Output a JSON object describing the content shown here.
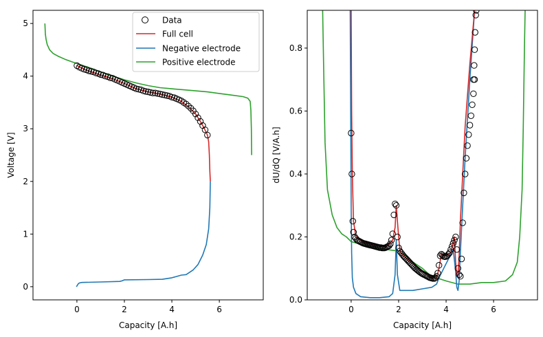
{
  "chart_data": [
    {
      "type": "line",
      "panel": "left",
      "title": "",
      "xlabel": "Capacity [A.h]",
      "ylabel": "Voltage [V]",
      "xlim": [
        -1.85,
        7.85
      ],
      "ylim": [
        -0.25,
        5.25
      ],
      "xticks": [
        0,
        2,
        4,
        6
      ],
      "yticks": [
        0,
        1,
        2,
        3,
        4,
        5
      ],
      "legend": {
        "placement": "top-right",
        "entries": [
          "Data",
          "Full cell",
          "Negative electrode",
          "Positive electrode"
        ]
      },
      "series": [
        {
          "name": "Positive electrode",
          "color": "#2ca02c",
          "kind": "line",
          "x": [
            -1.35,
            -1.33,
            -1.3,
            -1.25,
            -1.15,
            -1.0,
            -0.8,
            -0.5,
            -0.2,
            0.2,
            0.6,
            1.0,
            1.5,
            2.0,
            2.5,
            3.0,
            3.5,
            4.0,
            4.5,
            5.0,
            5.5,
            6.0,
            6.5,
            7.0,
            7.2,
            7.3,
            7.33,
            7.35,
            7.36
          ],
          "y": [
            5.0,
            4.8,
            4.7,
            4.6,
            4.5,
            4.43,
            4.38,
            4.32,
            4.27,
            4.21,
            4.15,
            4.08,
            4.0,
            3.93,
            3.87,
            3.82,
            3.78,
            3.76,
            3.74,
            3.72,
            3.7,
            3.67,
            3.64,
            3.61,
            3.58,
            3.52,
            3.35,
            3.0,
            2.5
          ]
        },
        {
          "name": "Full cell",
          "color": "#d62728",
          "kind": "line",
          "x": [
            0.0,
            0.3,
            0.6,
            1.0,
            1.5,
            2.0,
            2.5,
            3.0,
            3.5,
            4.0,
            4.4,
            4.7,
            5.0,
            5.2,
            5.35,
            5.5,
            5.55,
            5.58,
            5.6,
            5.62
          ],
          "y": [
            4.2,
            4.13,
            4.08,
            4.02,
            3.95,
            3.86,
            3.76,
            3.7,
            3.66,
            3.6,
            3.52,
            3.42,
            3.28,
            3.14,
            3.02,
            2.88,
            2.75,
            2.5,
            2.2,
            2.0
          ]
        },
        {
          "name": "Negative electrode",
          "color": "#1f77b4",
          "kind": "line",
          "x": [
            -0.02,
            0.05,
            0.1,
            0.2,
            1.0,
            1.8,
            1.9,
            2.0,
            3.0,
            3.6,
            4.0,
            4.4,
            4.6,
            4.9,
            5.1,
            5.3,
            5.45,
            5.55,
            5.6,
            5.62
          ],
          "y": [
            0.0,
            0.05,
            0.07,
            0.08,
            0.09,
            0.1,
            0.11,
            0.13,
            0.135,
            0.14,
            0.17,
            0.22,
            0.23,
            0.32,
            0.42,
            0.6,
            0.8,
            1.1,
            1.5,
            2.0
          ]
        },
        {
          "name": "Data",
          "kind": "markers",
          "x": [
            0.0,
            0.1,
            0.2,
            0.3,
            0.4,
            0.5,
            0.6,
            0.7,
            0.8,
            0.9,
            1.0,
            1.1,
            1.2,
            1.3,
            1.4,
            1.5,
            1.6,
            1.7,
            1.8,
            1.9,
            2.0,
            2.1,
            2.2,
            2.3,
            2.4,
            2.5,
            2.6,
            2.7,
            2.8,
            2.9,
            3.0,
            3.1,
            3.2,
            3.3,
            3.4,
            3.5,
            3.6,
            3.7,
            3.8,
            3.9,
            4.0,
            4.1,
            4.2,
            4.3,
            4.4,
            4.5,
            4.6,
            4.7,
            4.8,
            4.9,
            5.0,
            5.1,
            5.2,
            5.3,
            5.4,
            5.5
          ],
          "y": [
            4.2,
            4.17,
            4.15,
            4.13,
            4.12,
            4.1,
            4.09,
            4.08,
            4.06,
            4.05,
            4.03,
            4.02,
            4.0,
            3.99,
            3.97,
            3.96,
            3.94,
            3.92,
            3.9,
            3.88,
            3.86,
            3.84,
            3.82,
            3.8,
            3.78,
            3.76,
            3.75,
            3.74,
            3.72,
            3.71,
            3.7,
            3.69,
            3.68,
            3.68,
            3.67,
            3.66,
            3.65,
            3.64,
            3.63,
            3.62,
            3.6,
            3.59,
            3.57,
            3.55,
            3.53,
            3.5,
            3.47,
            3.43,
            3.39,
            3.34,
            3.28,
            3.21,
            3.14,
            3.06,
            2.98,
            2.88
          ]
        }
      ]
    },
    {
      "type": "line",
      "panel": "right",
      "title": "",
      "xlabel": "Capacity [A.h]",
      "ylabel": "dU/dQ [V/A.h]",
      "xlim": [
        -1.85,
        7.85
      ],
      "ylim": [
        0.0,
        0.92
      ],
      "xticks": [
        0,
        2,
        4,
        6
      ],
      "yticks": [
        0.0,
        0.2,
        0.4,
        0.6,
        0.8
      ],
      "series": [
        {
          "name": "Positive electrode",
          "color": "#2ca02c",
          "kind": "line",
          "x": [
            -1.2,
            -1.15,
            -1.1,
            -1.0,
            -0.8,
            -0.6,
            -0.4,
            -0.2,
            0.0,
            0.5,
            1.0,
            1.5,
            2.0,
            2.3,
            2.6,
            3.0,
            3.3,
            3.6,
            4.0,
            4.5,
            5.0,
            5.5,
            6.0,
            6.5,
            6.8,
            7.0,
            7.1,
            7.2,
            7.25,
            7.3,
            7.33
          ],
          "y": [
            0.92,
            0.7,
            0.5,
            0.35,
            0.27,
            0.23,
            0.21,
            0.2,
            0.185,
            0.175,
            0.165,
            0.16,
            0.155,
            0.14,
            0.12,
            0.1,
            0.08,
            0.07,
            0.06,
            0.05,
            0.05,
            0.055,
            0.055,
            0.06,
            0.08,
            0.12,
            0.2,
            0.35,
            0.55,
            0.8,
            0.92
          ]
        },
        {
          "name": "Negative electrode",
          "color": "#1f77b4",
          "kind": "line",
          "x": [
            -0.04,
            -0.02,
            0.0,
            0.02,
            0.05,
            0.1,
            0.2,
            0.4,
            0.8,
            1.2,
            1.6,
            1.75,
            1.85,
            1.9,
            1.95,
            2.05,
            2.2,
            2.6,
            3.0,
            3.4,
            3.6,
            3.7,
            3.9,
            4.1,
            4.2,
            4.3,
            4.4,
            4.45,
            4.5,
            4.55,
            4.6,
            4.7,
            4.8,
            5.0,
            5.2
          ],
          "y": [
            0.92,
            0.6,
            0.3,
            0.15,
            0.07,
            0.04,
            0.02,
            0.01,
            0.007,
            0.007,
            0.01,
            0.02,
            0.08,
            0.19,
            0.08,
            0.03,
            0.03,
            0.03,
            0.035,
            0.04,
            0.05,
            0.07,
            0.1,
            0.13,
            0.15,
            0.16,
            0.09,
            0.04,
            0.03,
            0.06,
            0.15,
            0.3,
            0.45,
            0.7,
            0.92
          ]
        },
        {
          "name": "Full cell",
          "color": "#d62728",
          "kind": "line",
          "x": [
            0.0,
            0.02,
            0.05,
            0.1,
            0.2,
            0.5,
            1.0,
            1.5,
            1.75,
            1.85,
            1.9,
            1.95,
            2.0,
            2.05,
            2.1,
            2.2,
            2.6,
            3.0,
            3.4,
            3.6,
            3.7,
            3.8,
            3.9,
            4.0,
            4.2,
            4.35,
            4.4,
            4.45,
            4.5,
            4.55,
            4.6,
            4.7,
            4.8,
            5.0,
            5.2
          ],
          "y": [
            0.92,
            0.6,
            0.4,
            0.25,
            0.2,
            0.185,
            0.175,
            0.17,
            0.19,
            0.23,
            0.3,
            0.25,
            0.2,
            0.16,
            0.15,
            0.14,
            0.115,
            0.09,
            0.07,
            0.07,
            0.1,
            0.145,
            0.14,
            0.14,
            0.15,
            0.2,
            0.12,
            0.08,
            0.075,
            0.14,
            0.25,
            0.4,
            0.55,
            0.75,
            0.92
          ]
        },
        {
          "name": "Data",
          "kind": "markers",
          "x": [
            0.0,
            0.03,
            0.07,
            0.1,
            0.15,
            0.2,
            0.25,
            0.3,
            0.35,
            0.4,
            0.45,
            0.5,
            0.55,
            0.6,
            0.65,
            0.7,
            0.75,
            0.8,
            0.85,
            0.9,
            0.95,
            1.0,
            1.05,
            1.1,
            1.15,
            1.2,
            1.25,
            1.3,
            1.35,
            1.4,
            1.45,
            1.5,
            1.55,
            1.6,
            1.65,
            1.7,
            1.75,
            1.8,
            1.85,
            1.9,
            1.95,
            2.0,
            2.05,
            2.1,
            2.15,
            2.2,
            2.25,
            2.3,
            2.35,
            2.4,
            2.45,
            2.5,
            2.55,
            2.6,
            2.65,
            2.7,
            2.75,
            2.8,
            2.85,
            2.9,
            2.95,
            3.0,
            3.05,
            3.1,
            3.15,
            3.2,
            3.25,
            3.3,
            3.35,
            3.4,
            3.45,
            3.5,
            3.55,
            3.6,
            3.65,
            3.7,
            3.75,
            3.8,
            3.85,
            3.9,
            3.95,
            4.0,
            4.05,
            4.1,
            4.15,
            4.2,
            4.25,
            4.3,
            4.35,
            4.4,
            4.45,
            4.5,
            4.55,
            4.6,
            4.65,
            4.7,
            4.75,
            4.8,
            4.85,
            4.9,
            4.95,
            5.0,
            5.05,
            5.1,
            5.15,
            5.2
          ],
          "y": [
            0.53,
            0.4,
            0.25,
            0.215,
            0.2,
            0.195,
            0.19,
            0.188,
            0.186,
            0.184,
            0.182,
            0.18,
            0.179,
            0.178,
            0.177,
            0.176,
            0.175,
            0.174,
            0.173,
            0.172,
            0.171,
            0.17,
            0.169,
            0.168,
            0.167,
            0.166,
            0.166,
            0.165,
            0.165,
            0.165,
            0.166,
            0.168,
            0.17,
            0.172,
            0.178,
            0.19,
            0.21,
            0.27,
            0.305,
            0.3,
            0.2,
            0.165,
            0.155,
            0.15,
            0.145,
            0.14,
            0.136,
            0.132,
            0.128,
            0.124,
            0.12,
            0.116,
            0.112,
            0.108,
            0.104,
            0.1,
            0.097,
            0.094,
            0.091,
            0.088,
            0.085,
            0.083,
            0.081,
            0.079,
            0.077,
            0.075,
            0.073,
            0.071,
            0.07,
            0.069,
            0.068,
            0.068,
            0.07,
            0.075,
            0.085,
            0.11,
            0.14,
            0.145,
            0.142,
            0.138,
            0.137,
            0.138,
            0.14,
            0.145,
            0.15,
            0.16,
            0.17,
            0.18,
            0.19,
            0.2,
            0.16,
            0.1,
            0.08,
            0.075,
            0.13,
            0.245,
            0.34,
            0.4,
            0.45,
            0.49,
            0.525,
            0.555,
            0.585,
            0.62,
            0.655,
            0.7
          ],
          "extra_x": [
            5.15,
            5.18,
            5.2,
            5.22,
            5.25,
            5.27
          ],
          "extra_y": [
            0.7,
            0.745,
            0.795,
            0.85,
            0.905,
            0.92
          ]
        }
      ]
    }
  ]
}
